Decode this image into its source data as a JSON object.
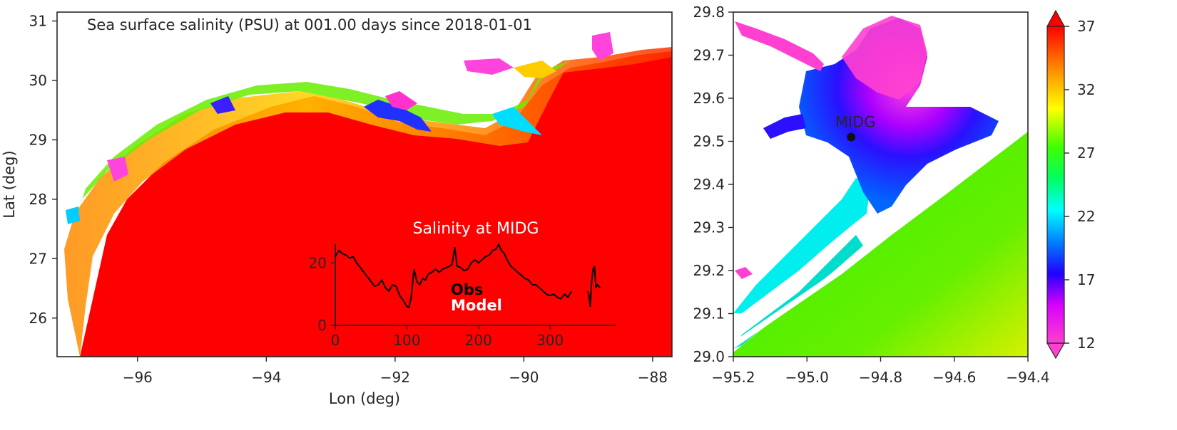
{
  "main_map": {
    "title": "Sea surface salinity (PSU) at 001.00 days since 2018-01-01",
    "xlabel": "Lon (deg)",
    "ylabel": "Lat (deg)",
    "xlim": [
      -97.25,
      -87.7
    ],
    "ylim": [
      25.35,
      31.15
    ],
    "xticks": [
      {
        "value": -96,
        "label": "−96"
      },
      {
        "value": -94,
        "label": "−94"
      },
      {
        "value": -92,
        "label": "−92"
      },
      {
        "value": -90,
        "label": "−90"
      },
      {
        "value": -88,
        "label": "−88"
      }
    ],
    "yticks": [
      {
        "value": 26,
        "label": "26"
      },
      {
        "value": 27,
        "label": "27"
      },
      {
        "value": 28,
        "label": "28"
      },
      {
        "value": 29,
        "label": "29"
      },
      {
        "value": 30,
        "label": "30"
      },
      {
        "value": 31,
        "label": "31"
      }
    ]
  },
  "inset": {
    "title": "Salinity at MIDG",
    "xlim": [
      0,
      365
    ],
    "ylim": [
      0,
      26
    ],
    "xticks": [
      {
        "value": 0,
        "label": "0"
      },
      {
        "value": 100,
        "label": "100"
      },
      {
        "value": 200,
        "label": "200"
      },
      {
        "value": 300,
        "label": "300"
      }
    ],
    "yticks": [
      {
        "value": 0,
        "label": "0"
      },
      {
        "value": 20,
        "label": "20"
      }
    ],
    "legend": {
      "obs": "Obs",
      "model": "Model"
    },
    "colors": {
      "obs": "#000000",
      "model": "#ffffff"
    },
    "obs_series": [
      [
        0,
        22
      ],
      [
        5,
        24
      ],
      [
        10,
        23
      ],
      [
        15,
        22.5
      ],
      [
        20,
        21.5
      ],
      [
        25,
        22
      ],
      [
        30,
        20
      ],
      [
        35,
        18.5
      ],
      [
        40,
        17
      ],
      [
        45,
        15.5
      ],
      [
        50,
        14
      ],
      [
        55,
        12.5
      ],
      [
        60,
        13
      ],
      [
        65,
        14.5
      ],
      [
        70,
        12
      ],
      [
        75,
        11
      ],
      [
        80,
        13
      ],
      [
        85,
        12.5
      ],
      [
        90,
        9.5
      ],
      [
        95,
        8
      ],
      [
        100,
        6
      ],
      [
        103,
        5.8
      ],
      [
        106,
        9
      ],
      [
        110,
        18
      ],
      [
        114,
        14
      ],
      [
        118,
        13
      ],
      [
        122,
        15
      ],
      [
        126,
        14.5
      ],
      [
        130,
        16.5
      ],
      [
        135,
        17
      ],
      [
        140,
        18
      ],
      [
        145,
        17
      ],
      [
        150,
        18
      ],
      [
        155,
        18.5
      ],
      [
        160,
        19
      ],
      [
        163,
        19.5
      ],
      [
        167,
        25
      ],
      [
        170,
        19
      ],
      [
        175,
        18.5
      ],
      [
        180,
        17.5
      ],
      [
        185,
        18
      ],
      [
        190,
        20
      ],
      [
        195,
        21
      ],
      [
        200,
        20
      ],
      [
        205,
        21
      ],
      [
        210,
        22
      ],
      [
        215,
        22.5
      ],
      [
        220,
        24
      ],
      [
        225,
        24.5
      ],
      [
        228,
        26
      ],
      [
        232,
        24
      ],
      [
        236,
        23
      ],
      [
        240,
        21
      ],
      [
        245,
        19
      ],
      [
        250,
        18
      ],
      [
        255,
        17
      ],
      [
        260,
        16
      ],
      [
        265,
        15
      ],
      [
        270,
        14.5
      ],
      [
        275,
        13
      ],
      [
        280,
        13
      ],
      [
        285,
        12
      ],
      [
        290,
        11
      ],
      [
        295,
        10
      ],
      [
        300,
        9.5
      ],
      [
        305,
        10
      ],
      [
        310,
        9
      ],
      [
        315,
        8.5
      ],
      [
        320,
        10
      ],
      [
        325,
        9
      ],
      [
        330,
        11
      ]
    ],
    "obs_series_2": [
      [
        352,
        11
      ],
      [
        354,
        10
      ],
      [
        356,
        6
      ],
      [
        358,
        14
      ],
      [
        360,
        18
      ],
      [
        362,
        19
      ],
      [
        364,
        12
      ],
      [
        366,
        13
      ],
      [
        370,
        12
      ]
    ]
  },
  "zoom_map": {
    "xlim": [
      -95.2,
      -94.4
    ],
    "ylim": [
      29.0,
      29.8
    ],
    "xticks": [
      {
        "value": -95.2,
        "label": "−95.2"
      },
      {
        "value": -95.0,
        "label": "−95.0"
      },
      {
        "value": -94.8,
        "label": "−94.8"
      },
      {
        "value": -94.6,
        "label": "−94.6"
      },
      {
        "value": -94.4,
        "label": "−94.4"
      }
    ],
    "yticks": [
      {
        "value": 29.0,
        "label": "29.0"
      },
      {
        "value": 29.1,
        "label": "29.1"
      },
      {
        "value": 29.2,
        "label": "29.2"
      },
      {
        "value": 29.3,
        "label": "29.3"
      },
      {
        "value": 29.4,
        "label": "29.4"
      },
      {
        "value": 29.5,
        "label": "29.5"
      },
      {
        "value": 29.6,
        "label": "29.6"
      },
      {
        "value": 29.7,
        "label": "29.7"
      },
      {
        "value": 29.8,
        "label": "29.8"
      }
    ],
    "station": {
      "name": "MIDG",
      "lon": -94.88,
      "lat": 29.51
    }
  },
  "colorbar": {
    "min": 12,
    "max": 37,
    "ticks": [
      {
        "value": 12,
        "label": "12"
      },
      {
        "value": 17,
        "label": "17"
      },
      {
        "value": 22,
        "label": "22"
      },
      {
        "value": 27,
        "label": "27"
      },
      {
        "value": 32,
        "label": "32"
      },
      {
        "value": 37,
        "label": "37"
      }
    ],
    "colors": [
      "#ff33cc",
      "#cc00ff",
      "#0000ff",
      "#00ffff",
      "#00ff00",
      "#ffff00",
      "#ff8800",
      "#ff0000"
    ]
  }
}
